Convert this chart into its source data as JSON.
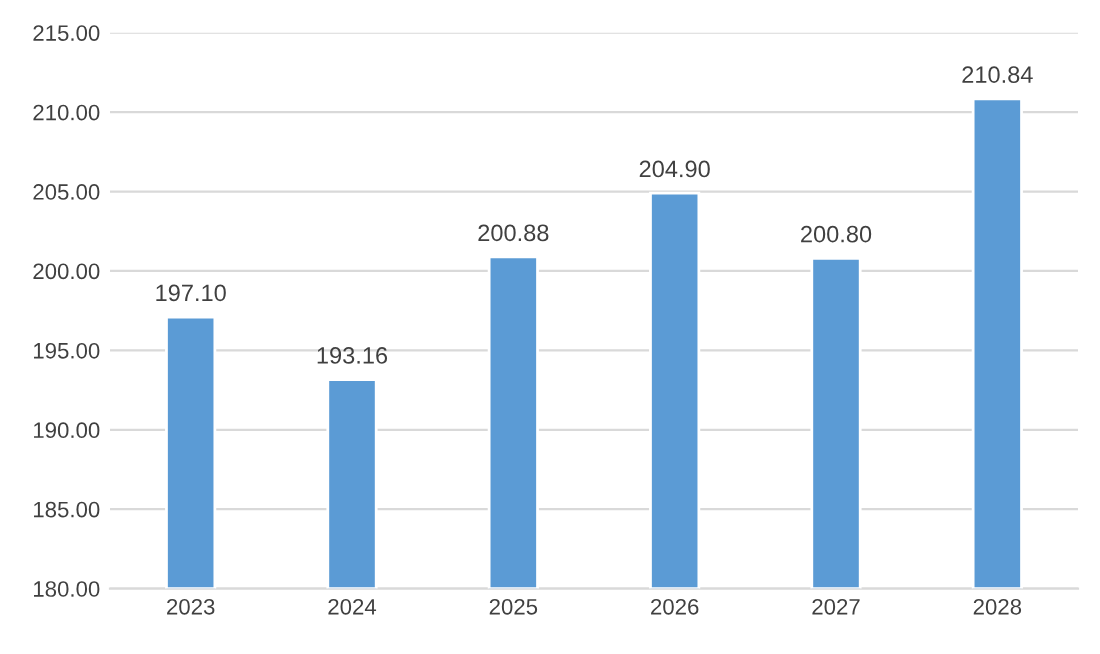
{
  "chart_data": {
    "type": "bar",
    "categories": [
      "2023",
      "2024",
      "2025",
      "2026",
      "2027",
      "2028"
    ],
    "values": [
      197.1,
      193.16,
      200.88,
      204.9,
      200.8,
      210.84
    ],
    "value_labels": [
      "197.10",
      "193.16",
      "200.88",
      "204.90",
      "200.80",
      "210.84"
    ],
    "color": "#5b9bd5",
    "ylim": [
      180,
      215
    ],
    "yticks": [
      {
        "value": 180,
        "label": "180.00"
      },
      {
        "value": 185,
        "label": "185.00"
      },
      {
        "value": 190,
        "label": "190.00"
      },
      {
        "value": 195,
        "label": "195.00"
      },
      {
        "value": 200,
        "label": "200.00"
      },
      {
        "value": 205,
        "label": "205.00"
      },
      {
        "value": 210,
        "label": "210.00"
      },
      {
        "value": 215,
        "label": "215.00"
      }
    ],
    "grid": "y"
  }
}
